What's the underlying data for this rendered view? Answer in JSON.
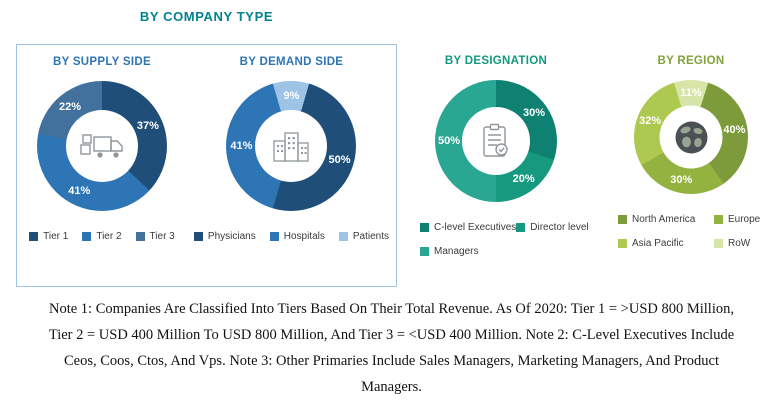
{
  "header": {
    "text": "BY COMPANY TYPE",
    "color": "#00838f"
  },
  "frame_border_color": "#9dc3e6",
  "chart_data": [
    {
      "type": "pie",
      "id": "supply-side",
      "title": "BY SUPPLY SIDE",
      "title_color": "#2e74b5",
      "icon": "truck-icon",
      "size": 130,
      "start_angle": 0,
      "segments": [
        {
          "label": "Tier 1",
          "value": 37,
          "color": "#1f4e79"
        },
        {
          "label": "Tier 2",
          "value": 41,
          "color": "#2e75b6"
        },
        {
          "label": "Tier 3",
          "value": 22,
          "color": "#41719c"
        }
      ],
      "legend_rows": [
        [
          0,
          1,
          2
        ]
      ],
      "legend_position": "bottom"
    },
    {
      "type": "pie",
      "id": "demand-side",
      "title": "BY DEMAND SIDE",
      "title_color": "#2e74b5",
      "icon": "buildings-icon",
      "size": 130,
      "start_angle": -16.2,
      "segments": [
        {
          "label": "Patients",
          "value": 9,
          "color": "#9dc3e6"
        },
        {
          "label": "Physicians",
          "value": 50,
          "color": "#1f4e79"
        },
        {
          "label": "Hospitals",
          "value": 41,
          "color": "#2e75b6"
        }
      ],
      "legend_rows": [
        [
          1,
          2,
          0
        ]
      ],
      "legend_position": "bottom"
    },
    {
      "type": "pie",
      "id": "designation",
      "title": "BY DESIGNATION",
      "title_color": "#149882",
      "icon": "clipboard-icon",
      "size": 122,
      "start_angle": 0,
      "segments": [
        {
          "label": "C-level Executives",
          "value": 30,
          "color": "#0e8173"
        },
        {
          "label": "Director level",
          "value": 20,
          "color": "#17997f"
        },
        {
          "label": "Managers",
          "value": 50,
          "color": "#2aa792"
        }
      ],
      "legend_rows": [
        [
          0,
          1
        ],
        [
          2
        ]
      ],
      "legend_position": "bottom"
    },
    {
      "type": "pie",
      "id": "region",
      "title": "BY REGION",
      "title_color": "#7fa33a",
      "icon": "globe-icon",
      "size": 114,
      "start_angle": -17.5,
      "segments": [
        {
          "label": "RoW",
          "value": 11,
          "color": "#d8e5a8"
        },
        {
          "label": "North America",
          "value": 40,
          "color": "#7d9b3b"
        },
        {
          "label": "Europe",
          "value": 30,
          "color": "#94b23f"
        },
        {
          "label": "Asia Pacific",
          "value": 32,
          "color": "#aec94f"
        }
      ],
      "legend_rows": [
        [
          1,
          2
        ],
        [
          3,
          0
        ]
      ],
      "legend_position": "bottom"
    }
  ],
  "notes": {
    "lines": [
      "Note 1: Companies Are Classified Into Tiers Based On Their Total Revenue. As Of 2020: Tier 1 = >USD 800 Million,",
      "Tier 2 = USD 400 Million To USD 800 Million, And Tier 3 = <USD 400 Million. Note 2: C-Level Executives Include",
      "Ceos, Coos, Ctos, And Vps. Note 3: Other Primaries Include Sales Managers, Marketing Managers, And Product",
      "Managers."
    ]
  }
}
